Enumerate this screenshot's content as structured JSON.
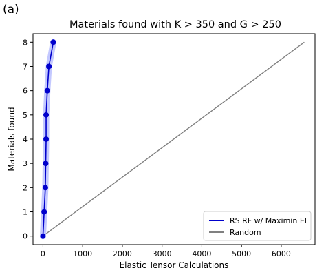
{
  "panel_label": "(a)",
  "chart_data": {
    "type": "line",
    "title": "Materials found with K > 350 and G > 250",
    "xlabel": "Elastic Tensor Calculations",
    "ylabel": "Materials found",
    "xlim": [
      -250,
      6850
    ],
    "ylim": [
      -0.35,
      8.35
    ],
    "xticks": [
      0,
      1000,
      2000,
      3000,
      4000,
      5000,
      6000
    ],
    "yticks": [
      0,
      1,
      2,
      3,
      4,
      5,
      6,
      7,
      8
    ],
    "grid": false,
    "legend_position": "lower-right",
    "series": [
      {
        "name": "RS RF w/ Maximin EI",
        "color": "#0000cc",
        "band_color": "#aab0ff",
        "markers": true,
        "x": [
          0,
          30,
          60,
          70,
          80,
          80,
          110,
          150,
          260
        ],
        "y": [
          0,
          1,
          2,
          3,
          4,
          5,
          6,
          7,
          8
        ]
      },
      {
        "name": "Random",
        "color": "#808080",
        "markers": false,
        "x": [
          0,
          6580
        ],
        "y": [
          0,
          8
        ]
      }
    ]
  }
}
